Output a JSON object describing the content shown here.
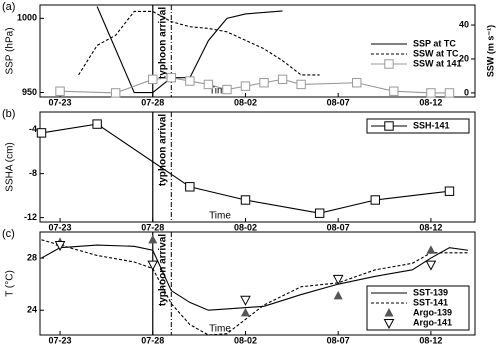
{
  "chart_data": [
    {
      "type": "line",
      "panel_label": "(a)",
      "ylabel": "SSP (hPa)",
      "y2label": "SSW (m s⁻¹)",
      "xlabel": "Time",
      "xlim": [
        "07-22",
        "08-14"
      ],
      "xticks": [
        "07-23",
        "07-28",
        "08-02",
        "08-07",
        "08-12"
      ],
      "ylim": [
        947,
        1009
      ],
      "yticks": [
        950,
        1000
      ],
      "y2lim": [
        -2.4,
        51.8
      ],
      "y2ticks": [
        0,
        20,
        40
      ],
      "event": {
        "label": "typhoon arrival",
        "start": "07-28",
        "end": "07-29"
      },
      "legend": "center right",
      "legend_frame": false,
      "series": [
        {
          "name": "SSP at TC",
          "color": "#000000",
          "dash": "solid",
          "marker": "none",
          "x": [
            "07-25",
            "07-26",
            "07-27",
            "07-28",
            "07-29",
            "07-30",
            "07-31",
            "08-01",
            "08-02",
            "08-03",
            "08-04"
          ],
          "values": [
            1008,
            979,
            950,
            950,
            960,
            960,
            985,
            1000,
            1003,
            1004,
            1005
          ]
        },
        {
          "name": "SSW at TC",
          "color": "#000000",
          "dash": "dashed",
          "marker": "none",
          "axis": "y2",
          "x": [
            "07-24",
            "07-25",
            "07-26",
            "07-27",
            "07-28",
            "07-29",
            "07-30",
            "07-31",
            "08-01",
            "08-02",
            "08-03",
            "08-04",
            "08-05",
            "08-06"
          ],
          "values": [
            10.6,
            28,
            34,
            48,
            48,
            42,
            39,
            38,
            36,
            31,
            26,
            19,
            10.6,
            10.6
          ]
        },
        {
          "name": "SSW at 141",
          "color": "#999999",
          "dash": "solid",
          "marker": "square-open",
          "axis": "y2",
          "x": [
            "07-23",
            "07-26",
            "07-28",
            "07-29",
            "07-30",
            "07-31",
            "08-01",
            "08-02",
            "08-03",
            "08-04",
            "08-05",
            "08-08",
            "08-10",
            "08-12",
            "08-13"
          ],
          "values": [
            1,
            0,
            8,
            9,
            7,
            5,
            2,
            4,
            6,
            8,
            5,
            6,
            1,
            0,
            0
          ]
        }
      ]
    },
    {
      "type": "line",
      "panel_label": "(b)",
      "ylabel": "SSHA (cm)",
      "xlabel": "Time",
      "xlim": [
        "07-22",
        "08-14"
      ],
      "xticks": [
        "07-23",
        "07-28",
        "08-02",
        "08-07",
        "08-12"
      ],
      "ylim": [
        -12.4,
        -2.4
      ],
      "yticks": [
        -12,
        -8,
        -4
      ],
      "event": {
        "label": "typhoon arrival",
        "start": "07-28",
        "end": "07-29"
      },
      "legend": "upper right",
      "legend_frame": true,
      "series": [
        {
          "name": "SSH-141",
          "color": "#000000",
          "dash": "solid",
          "marker": "square-open",
          "x": [
            "07-22",
            "07-25",
            "07-30",
            "08-02",
            "08-06",
            "08-09",
            "08-13"
          ],
          "values": [
            -4.3,
            -3.5,
            -9.2,
            -10.4,
            -11.6,
            -10.4,
            -9.6
          ]
        }
      ]
    },
    {
      "type": "line",
      "panel_label": "(c)",
      "ylabel": "T (°C)",
      "xlabel": "Time",
      "xlim": [
        "07-22",
        "08-14"
      ],
      "xticks": [
        "07-23",
        "07-28",
        "08-02",
        "08-07",
        "08-12"
      ],
      "ylim": [
        22.1,
        30
      ],
      "yticks": [
        24,
        28
      ],
      "event": {
        "label": "typhoon arrival",
        "start": "07-28",
        "end": "07-29"
      },
      "legend": "lower right",
      "legend_frame": true,
      "series": [
        {
          "name": "SST-139",
          "color": "#000000",
          "dash": "solid",
          "marker": "none",
          "x": [
            "07-22",
            "07-23",
            "07-25",
            "07-27",
            "07-28",
            "07-29",
            "07-30",
            "07-31",
            "08-01",
            "08-03",
            "08-05",
            "08-07",
            "08-09",
            "08-11",
            "08-12",
            "08-13",
            "08-14"
          ],
          "values": [
            28,
            28.8,
            29,
            28.9,
            28.6,
            25.5,
            24.6,
            24,
            24.1,
            24.3,
            25.2,
            26,
            26.6,
            27.1,
            28,
            28.8,
            28.6
          ]
        },
        {
          "name": "SST-141",
          "color": "#000000",
          "dash": "dashed",
          "marker": "none",
          "x": [
            "07-22",
            "07-23",
            "07-25",
            "07-27",
            "07-28",
            "07-29",
            "07-30",
            "07-31",
            "08-01",
            "08-03",
            "08-05",
            "08-07",
            "08-09",
            "08-11",
            "08-12",
            "08-14"
          ],
          "values": [
            29.4,
            29,
            28.2,
            27.7,
            27.2,
            24.5,
            22.9,
            22.1,
            22.2,
            24.4,
            25.8,
            26.1,
            27.1,
            27.6,
            28.4,
            28.4
          ]
        },
        {
          "name": "Argo-139",
          "color": "#555555",
          "dash": "none",
          "marker": "triangle-filled",
          "x": [
            "07-23",
            "07-28",
            "08-02",
            "08-07",
            "08-12"
          ],
          "values": [
            29.2,
            29.4,
            23.8,
            25.1,
            28.6
          ]
        },
        {
          "name": "Argo-141",
          "color": "#000000",
          "dash": "none",
          "marker": "triangle-down-open",
          "x": [
            "07-23",
            "07-28",
            "08-02",
            "08-07",
            "08-12"
          ],
          "values": [
            29.0,
            27.5,
            24.8,
            26.4,
            27.5
          ]
        }
      ]
    }
  ]
}
